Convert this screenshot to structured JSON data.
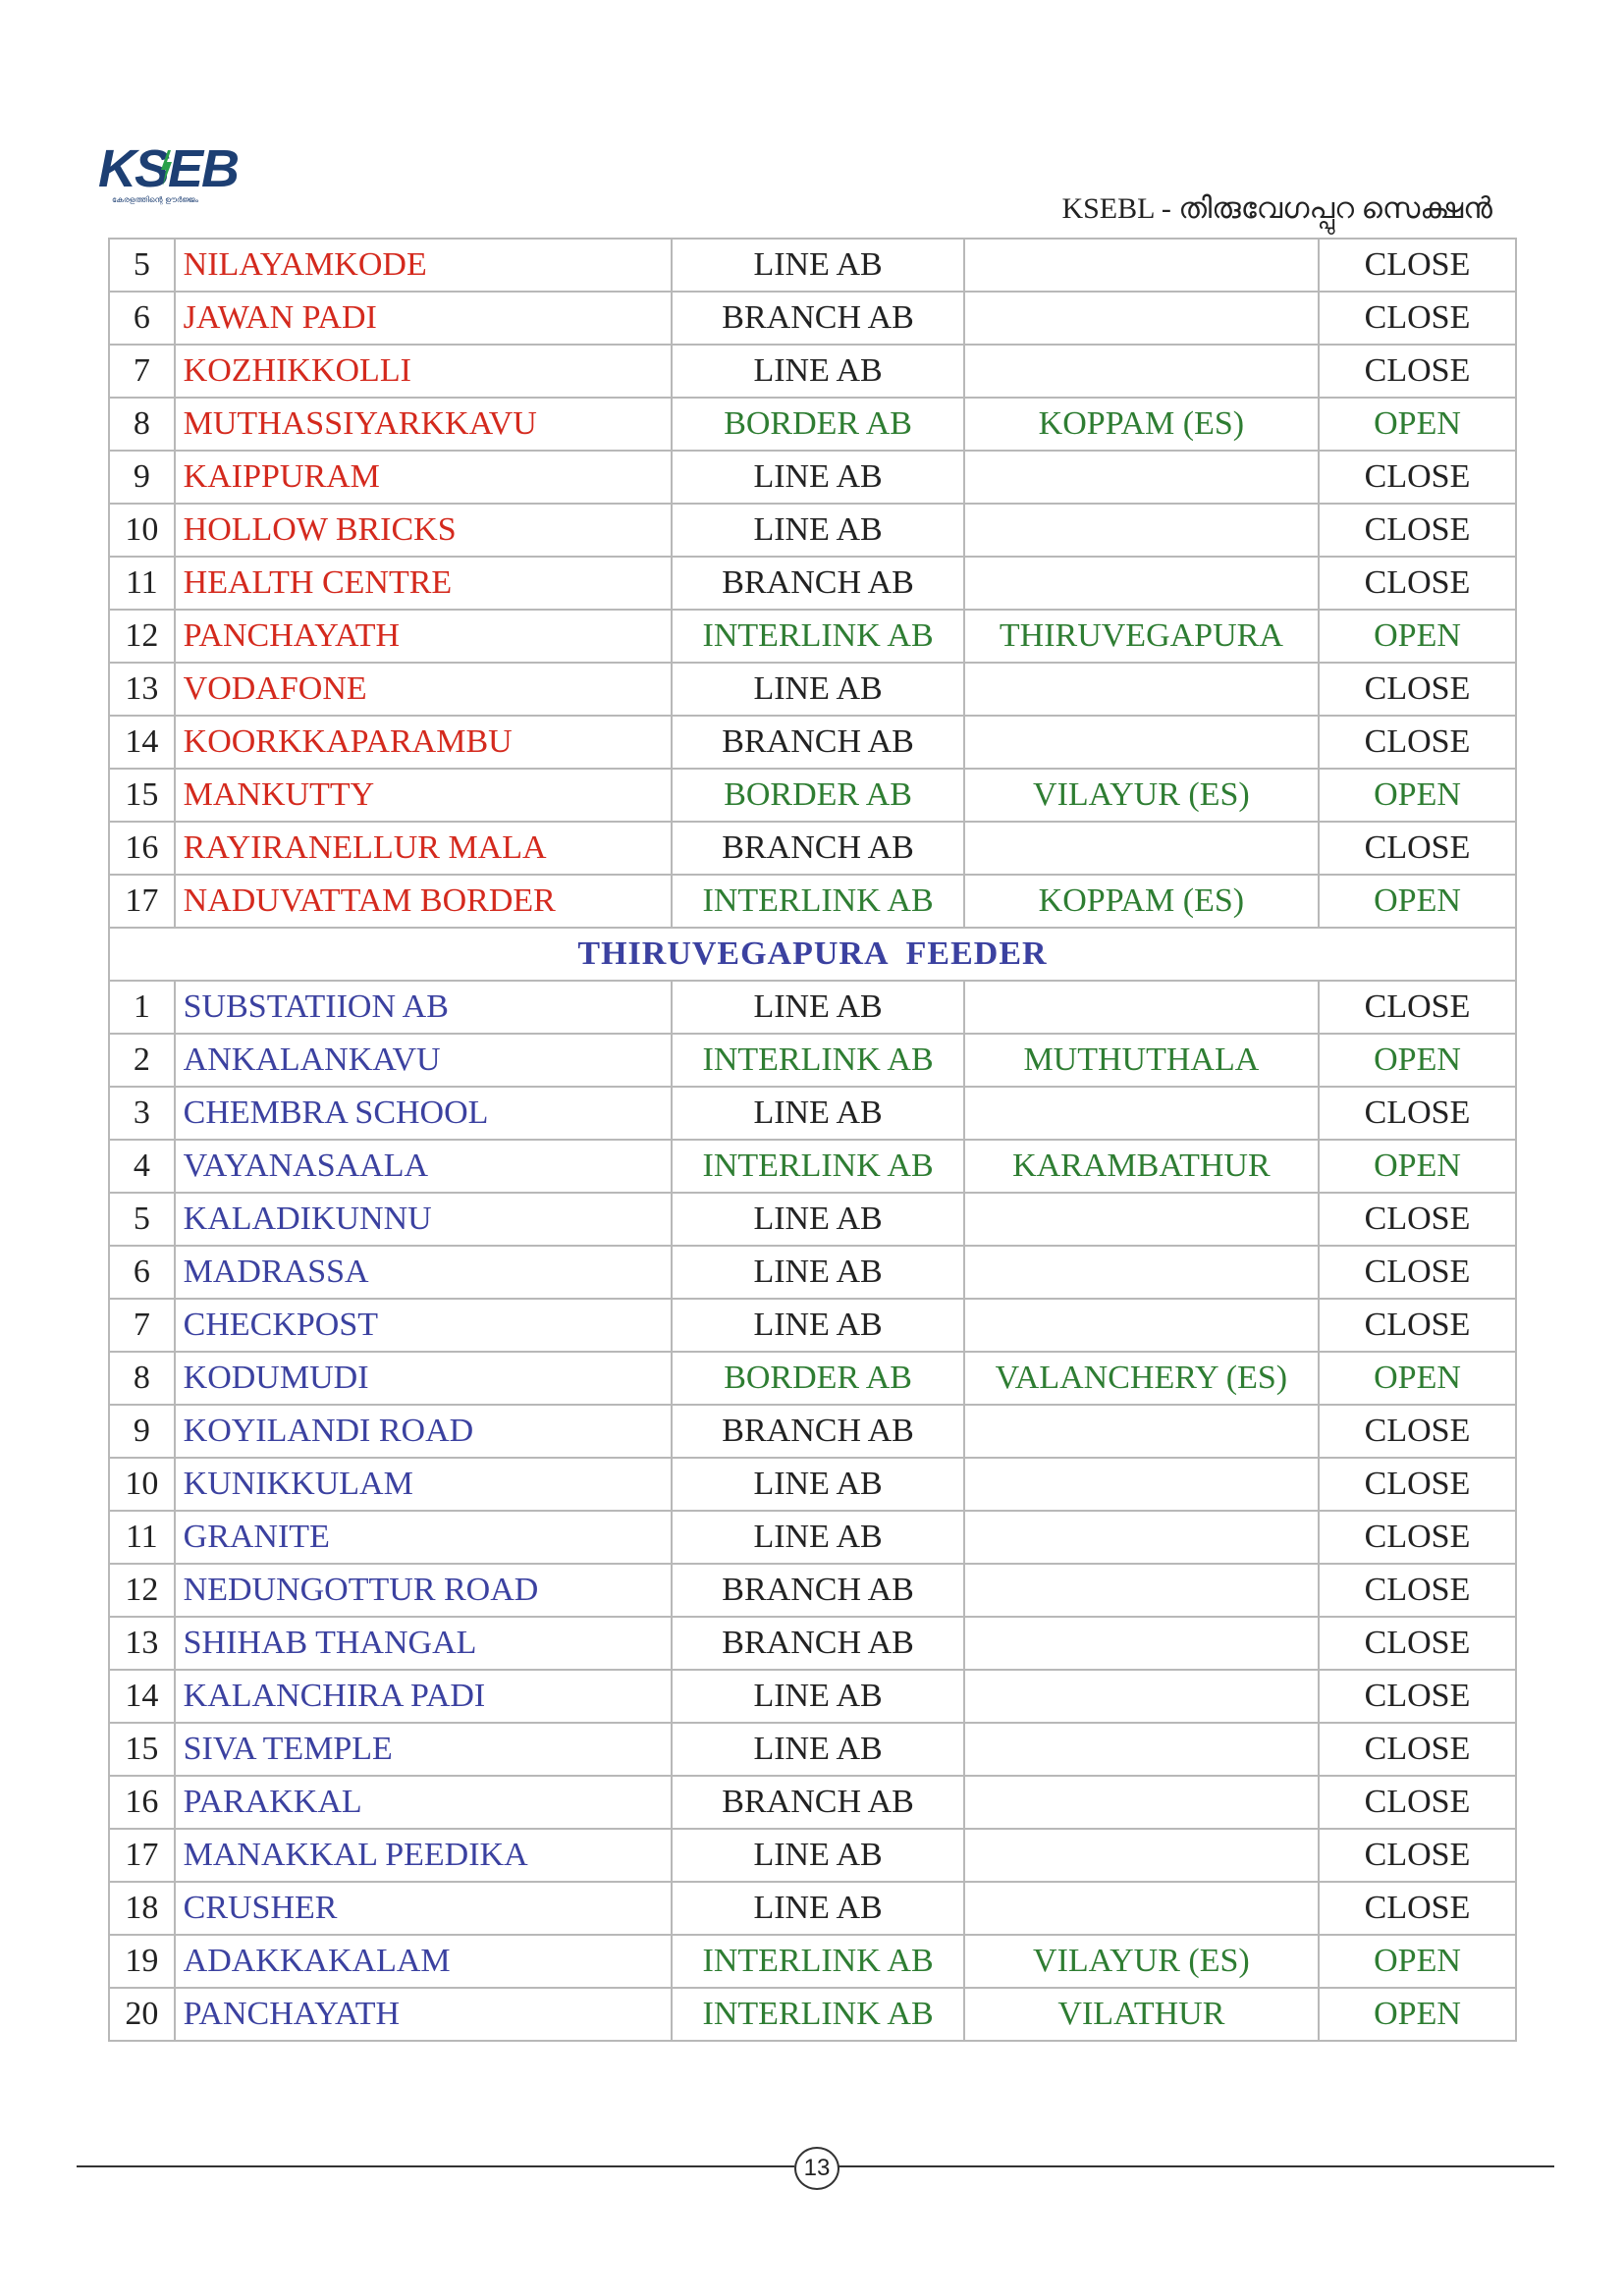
{
  "logo": {
    "text": "KSEB",
    "tagline": "കേരളത്തിന്റെ ഊർജ്ജം"
  },
  "header": {
    "title": "KSEBL - തിരുവേഗപ്പുറ സെക്ഷൻ"
  },
  "colors": {
    "red": "#d4291d",
    "blue": "#3b41a0",
    "green": "#2e7d32",
    "dark": "#222222"
  },
  "section1_rows": [
    {
      "num": "5",
      "name": "NILAYAMKODE",
      "type": "LINE AB",
      "connection": "",
      "status": "CLOSE"
    },
    {
      "num": "6",
      "name": "JAWAN PADI",
      "type": "BRANCH AB",
      "connection": "",
      "status": "CLOSE"
    },
    {
      "num": "7",
      "name": "KOZHIKKOLLI",
      "type": "LINE AB",
      "connection": "",
      "status": "CLOSE"
    },
    {
      "num": "8",
      "name": "MUTHASSIYARKKAVU",
      "type": "BORDER AB",
      "connection": "KOPPAM (ES)",
      "status": "OPEN"
    },
    {
      "num": "9",
      "name": "KAIPPURAM",
      "type": "LINE AB",
      "connection": "",
      "status": "CLOSE"
    },
    {
      "num": "10",
      "name": "HOLLOW BRICKS",
      "type": "LINE AB",
      "connection": "",
      "status": "CLOSE"
    },
    {
      "num": "11",
      "name": "HEALTH CENTRE",
      "type": "BRANCH AB",
      "connection": "",
      "status": "CLOSE"
    },
    {
      "num": "12",
      "name": "PANCHAYATH",
      "type": "INTERLINK AB",
      "connection": "THIRUVEGAPURA",
      "status": "OPEN"
    },
    {
      "num": "13",
      "name": "VODAFONE",
      "type": "LINE AB",
      "connection": "",
      "status": "CLOSE"
    },
    {
      "num": "14",
      "name": "KOORKKAPARAMBU",
      "type": "BRANCH AB",
      "connection": "",
      "status": "CLOSE"
    },
    {
      "num": "15",
      "name": "MANKUTTY",
      "type": "BORDER AB",
      "connection": "VILAYUR (ES)",
      "status": "OPEN"
    },
    {
      "num": "16",
      "name": "RAYIRANELLUR MALA",
      "type": "BRANCH AB",
      "connection": "",
      "status": "CLOSE"
    },
    {
      "num": "17",
      "name": "NADUVATTAM BORDER",
      "type": "INTERLINK AB",
      "connection": "KOPPAM (ES)",
      "status": "OPEN"
    }
  ],
  "feeder": {
    "title": "THIRUVEGAPURA  FEEDER"
  },
  "section2_rows": [
    {
      "num": "1",
      "name": "SUBSTATIION AB",
      "type": "LINE AB",
      "connection": "",
      "status": "CLOSE"
    },
    {
      "num": "2",
      "name": "ANKALANKAVU",
      "type": "INTERLINK AB",
      "connection": "MUTHUTHALA",
      "status": "OPEN"
    },
    {
      "num": "3",
      "name": "CHEMBRA SCHOOL",
      "type": "LINE AB",
      "connection": "",
      "status": "CLOSE"
    },
    {
      "num": "4",
      "name": "VAYANASAALA",
      "type": "INTERLINK AB",
      "connection": "KARAMBATHUR",
      "status": "OPEN"
    },
    {
      "num": "5",
      "name": "KALADIKUNNU",
      "type": "LINE AB",
      "connection": "",
      "status": "CLOSE"
    },
    {
      "num": "6",
      "name": "MADRASSA",
      "type": "LINE AB",
      "connection": "",
      "status": "CLOSE"
    },
    {
      "num": "7",
      "name": "CHECKPOST",
      "type": "LINE AB",
      "connection": "",
      "status": "CLOSE"
    },
    {
      "num": "8",
      "name": "KODUMUDI",
      "type": "BORDER AB",
      "connection": "VALANCHERY (ES)",
      "status": "OPEN"
    },
    {
      "num": "9",
      "name": "KOYILANDI ROAD",
      "type": "BRANCH AB",
      "connection": "",
      "status": "CLOSE"
    },
    {
      "num": "10",
      "name": "KUNIKKULAM",
      "type": "LINE AB",
      "connection": "",
      "status": "CLOSE"
    },
    {
      "num": "11",
      "name": "GRANITE",
      "type": "LINE AB",
      "connection": "",
      "status": "CLOSE"
    },
    {
      "num": "12",
      "name": "NEDUNGOTTUR ROAD",
      "type": "BRANCH AB",
      "connection": "",
      "status": "CLOSE"
    },
    {
      "num": "13",
      "name": "SHIHAB THANGAL",
      "type": "BRANCH AB",
      "connection": "",
      "status": "CLOSE"
    },
    {
      "num": "14",
      "name": "KALANCHIRA PADI",
      "type": "LINE AB",
      "connection": "",
      "status": "CLOSE"
    },
    {
      "num": "15",
      "name": "SIVA TEMPLE",
      "type": "LINE AB",
      "connection": "",
      "status": "CLOSE"
    },
    {
      "num": "16",
      "name": "PARAKKAL",
      "type": "BRANCH AB",
      "connection": "",
      "status": "CLOSE"
    },
    {
      "num": "17",
      "name": "MANAKKAL PEEDIKA",
      "type": "LINE AB",
      "connection": "",
      "status": "CLOSE"
    },
    {
      "num": "18",
      "name": "CRUSHER",
      "type": "LINE AB",
      "connection": "",
      "status": "CLOSE"
    },
    {
      "num": "19",
      "name": "ADAKKAKALAM",
      "type": "INTERLINK AB",
      "connection": "VILAYUR (ES)",
      "status": "OPEN"
    },
    {
      "num": "20",
      "name": "PANCHAYATH",
      "type": "INTERLINK AB",
      "connection": "VILATHUR",
      "status": "OPEN"
    }
  ],
  "footer": {
    "page_number": "13"
  }
}
